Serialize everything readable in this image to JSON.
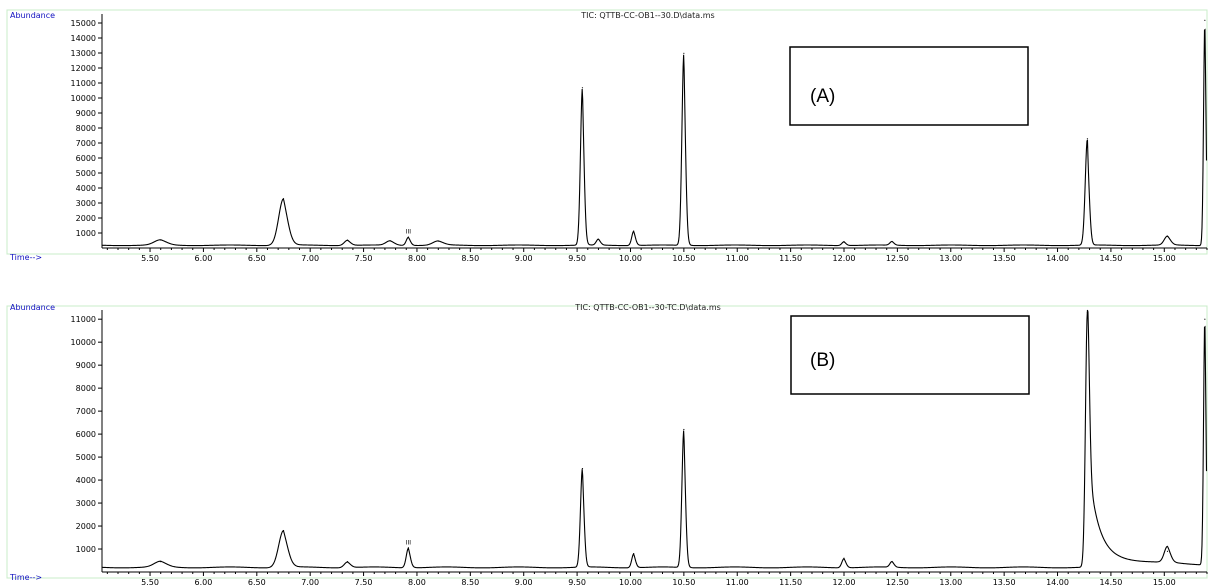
{
  "chart_data": [
    {
      "type": "line",
      "title": "TIC: QTTB-CC-OB1--30.D\\data.ms",
      "ylabel": "Abundance",
      "xlabel": "Time-->",
      "panel_label": "(A)",
      "line_color": "#000000",
      "frame_color": "#c8ecc8",
      "label_color": "#1010c0",
      "xlim": [
        5.05,
        15.4
      ],
      "ylim": [
        0,
        15600
      ],
      "x_ticks": [
        5.5,
        6.0,
        6.5,
        7.0,
        7.5,
        8.0,
        8.5,
        9.0,
        9.5,
        10.0,
        10.5,
        11.0,
        11.5,
        12.0,
        12.5,
        13.0,
        13.5,
        14.0,
        14.5,
        15.0
      ],
      "x_tick_labels": [
        "5.50",
        "6.00",
        "6.50",
        "7.00",
        "7.50",
        "8.00",
        "8.50",
        "9.00",
        "9.50",
        "10.00",
        "10.50",
        "11.00",
        "11.50",
        "12.00",
        "12.50",
        "13.00",
        "13.50",
        "14.00",
        "14.50",
        "15.00"
      ],
      "y_ticks": [
        1000,
        2000,
        3000,
        4000,
        5000,
        6000,
        7000,
        8000,
        9000,
        10000,
        11000,
        12000,
        13000,
        14000,
        15000
      ],
      "y_tick_labels": [
        "1000",
        "2000",
        "3000",
        "4000",
        "5000",
        "6000",
        "7000",
        "8000",
        "9000",
        "10000",
        "11000",
        "12000",
        "13000",
        "14000",
        "15000"
      ],
      "baseline": 180,
      "peaks": [
        {
          "x": 5.6,
          "y": 350,
          "w": 0.06
        },
        {
          "x": 6.75,
          "y": 3100,
          "w": 0.045,
          "tail": 0.035
        },
        {
          "x": 7.35,
          "y": 350,
          "w": 0.03
        },
        {
          "x": 7.75,
          "y": 300,
          "w": 0.04
        },
        {
          "x": 7.92,
          "y": 550,
          "w": 0.02
        },
        {
          "x": 8.2,
          "y": 280,
          "w": 0.05
        },
        {
          "x": 9.55,
          "y": 10500,
          "w": 0.018,
          "tail": 0.012
        },
        {
          "x": 9.7,
          "y": 400,
          "w": 0.02
        },
        {
          "x": 10.03,
          "y": 950,
          "w": 0.018
        },
        {
          "x": 10.5,
          "y": 12800,
          "w": 0.018,
          "tail": 0.012
        },
        {
          "x": 12.0,
          "y": 250,
          "w": 0.02
        },
        {
          "x": 12.45,
          "y": 250,
          "w": 0.02
        },
        {
          "x": 14.28,
          "y": 7100,
          "w": 0.02,
          "tail": 0.01
        },
        {
          "x": 15.03,
          "y": 600,
          "w": 0.03
        },
        {
          "x": 15.38,
          "y": 15000,
          "w": 0.012
        }
      ],
      "marker_text": "III",
      "marker_x": 7.92
    },
    {
      "type": "line",
      "title": "TIC: QTTB-CC-OB1--30-TC.D\\data.ms",
      "ylabel": "Abundance",
      "xlabel": "Time-->",
      "panel_label": "(B)",
      "line_color": "#000000",
      "frame_color": "#c8ecc8",
      "label_color": "#1010c0",
      "xlim": [
        5.05,
        15.4
      ],
      "ylim": [
        0,
        11400
      ],
      "x_ticks": [
        5.5,
        6.0,
        6.5,
        7.0,
        7.5,
        8.0,
        8.5,
        9.0,
        9.5,
        10.0,
        10.5,
        11.0,
        11.5,
        12.0,
        12.5,
        13.0,
        13.5,
        14.0,
        14.5,
        15.0
      ],
      "x_tick_labels": [
        "5.50",
        "6.00",
        "6.50",
        "7.00",
        "7.50",
        "8.00",
        "8.50",
        "9.00",
        "9.50",
        "10.00",
        "10.50",
        "11.00",
        "11.50",
        "12.00",
        "12.50",
        "13.00",
        "13.50",
        "14.00",
        "14.50",
        "15.00"
      ],
      "y_ticks": [
        1000,
        2000,
        3000,
        4000,
        5000,
        6000,
        7000,
        8000,
        9000,
        10000,
        11000
      ],
      "y_tick_labels": [
        "1000",
        "2000",
        "3000",
        "4000",
        "5000",
        "6000",
        "7000",
        "8000",
        "9000",
        "10000",
        "11000"
      ],
      "baseline": 200,
      "peaks": [
        {
          "x": 5.6,
          "y": 250,
          "w": 0.06
        },
        {
          "x": 6.75,
          "y": 1600,
          "w": 0.045,
          "tail": 0.035
        },
        {
          "x": 7.35,
          "y": 250,
          "w": 0.03
        },
        {
          "x": 7.92,
          "y": 850,
          "w": 0.02
        },
        {
          "x": 9.55,
          "y": 4300,
          "w": 0.018,
          "tail": 0.012
        },
        {
          "x": 10.03,
          "y": 600,
          "w": 0.018
        },
        {
          "x": 10.5,
          "y": 6000,
          "w": 0.018,
          "tail": 0.012
        },
        {
          "x": 12.0,
          "y": 400,
          "w": 0.02
        },
        {
          "x": 12.45,
          "y": 250,
          "w": 0.02
        },
        {
          "x": 14.28,
          "y": 11100,
          "w": 0.018,
          "tail": 0.09,
          "plateau": 500
        },
        {
          "x": 15.03,
          "y": 700,
          "w": 0.03
        },
        {
          "x": 15.38,
          "y": 10800,
          "w": 0.012
        }
      ],
      "marker_text": "III",
      "marker_x": 7.92
    }
  ]
}
